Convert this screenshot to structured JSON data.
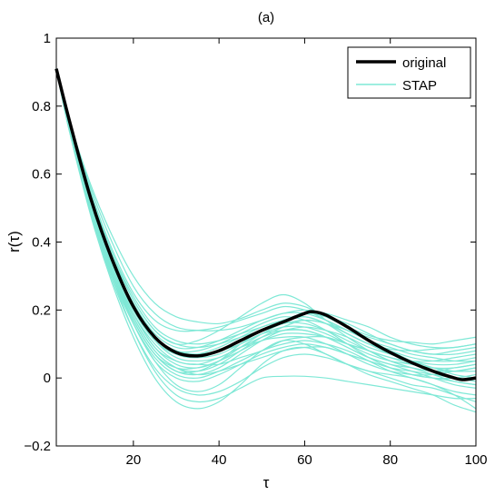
{
  "chart_data": {
    "type": "line",
    "title": "(a)",
    "xlabel": "τ",
    "ylabel": "r(τ)",
    "xlim": [
      2,
      100
    ],
    "ylim": [
      -0.2,
      1
    ],
    "xticks": [
      20,
      40,
      60,
      80,
      100
    ],
    "yticks": [
      -0.2,
      0,
      0.2,
      0.4,
      0.6,
      0.8,
      1
    ],
    "ytick_labels": [
      "−0.2",
      "0",
      "0.2",
      "0.4",
      "0.6",
      "0.8",
      "1"
    ],
    "grid": false,
    "legend_position": "top-right",
    "colors": {
      "original": "#000000",
      "STAP": "#7FE8D6"
    },
    "series": [
      {
        "name": "original",
        "x": [
          2,
          5,
          10,
          15,
          20,
          25,
          30,
          35,
          40,
          45,
          50,
          55,
          60,
          62,
          65,
          70,
          75,
          80,
          85,
          90,
          95,
          97,
          100
        ],
        "y": [
          0.91,
          0.76,
          0.53,
          0.35,
          0.21,
          0.12,
          0.075,
          0.065,
          0.08,
          0.11,
          0.14,
          0.165,
          0.19,
          0.195,
          0.185,
          0.15,
          0.11,
          0.075,
          0.045,
          0.02,
          0.0,
          -0.005,
          0.0
        ]
      },
      {
        "name": "STAP",
        "x": [
          2,
          5,
          10,
          15,
          20,
          25,
          30,
          35,
          40,
          45,
          50,
          55,
          60,
          65,
          70,
          75,
          80,
          85,
          90,
          95,
          100
        ],
        "curves": [
          [
            0.91,
            0.76,
            0.57,
            0.42,
            0.3,
            0.22,
            0.18,
            0.165,
            0.16,
            0.175,
            0.2,
            0.22,
            0.21,
            0.18,
            0.15,
            0.125,
            0.11,
            0.105,
            0.1,
            0.11,
            0.12
          ],
          [
            0.91,
            0.75,
            0.54,
            0.37,
            0.23,
            0.14,
            0.1,
            0.11,
            0.14,
            0.18,
            0.22,
            0.245,
            0.22,
            0.17,
            0.13,
            0.1,
            0.085,
            0.08,
            0.085,
            0.09,
            0.1
          ],
          [
            0.91,
            0.74,
            0.5,
            0.31,
            0.16,
            0.05,
            -0.02,
            -0.04,
            -0.02,
            0.03,
            0.08,
            0.11,
            0.1,
            0.07,
            0.04,
            0.02,
            0.01,
            0.0,
            -0.02,
            -0.05,
            -0.09
          ],
          [
            0.91,
            0.73,
            0.48,
            0.28,
            0.12,
            0.0,
            -0.07,
            -0.09,
            -0.07,
            -0.02,
            0.04,
            0.08,
            0.09,
            0.07,
            0.04,
            0.01,
            -0.01,
            -0.03,
            -0.05,
            -0.08,
            -0.1
          ],
          [
            0.91,
            0.74,
            0.49,
            0.3,
            0.14,
            0.02,
            -0.05,
            -0.07,
            -0.06,
            -0.03,
            0.0,
            0.005,
            0.005,
            0.0,
            -0.01,
            -0.02,
            -0.03,
            -0.04,
            -0.05,
            -0.06,
            -0.06
          ],
          [
            0.91,
            0.76,
            0.55,
            0.38,
            0.25,
            0.17,
            0.14,
            0.14,
            0.15,
            0.17,
            0.19,
            0.21,
            0.2,
            0.17,
            0.14,
            0.12,
            0.1,
            0.08,
            0.07,
            0.07,
            0.08
          ],
          [
            0.91,
            0.75,
            0.53,
            0.35,
            0.21,
            0.12,
            0.08,
            0.07,
            0.08,
            0.1,
            0.13,
            0.15,
            0.15,
            0.13,
            0.1,
            0.07,
            0.05,
            0.04,
            0.03,
            0.03,
            0.04
          ],
          [
            0.91,
            0.74,
            0.51,
            0.33,
            0.19,
            0.09,
            0.04,
            0.03,
            0.05,
            0.09,
            0.13,
            0.16,
            0.16,
            0.14,
            0.11,
            0.08,
            0.06,
            0.04,
            0.03,
            0.02,
            0.02
          ],
          [
            0.91,
            0.75,
            0.52,
            0.34,
            0.2,
            0.11,
            0.07,
            0.07,
            0.09,
            0.12,
            0.15,
            0.17,
            0.18,
            0.16,
            0.13,
            0.1,
            0.07,
            0.05,
            0.03,
            0.02,
            0.03
          ],
          [
            0.91,
            0.74,
            0.5,
            0.32,
            0.17,
            0.07,
            0.02,
            0.01,
            0.03,
            0.07,
            0.11,
            0.14,
            0.14,
            0.12,
            0.09,
            0.06,
            0.04,
            0.02,
            0.0,
            -0.02,
            -0.03
          ],
          [
            0.91,
            0.73,
            0.49,
            0.3,
            0.16,
            0.06,
            0.01,
            0.0,
            0.02,
            0.05,
            0.08,
            0.1,
            0.11,
            0.1,
            0.08,
            0.05,
            0.02,
            0.0,
            -0.02,
            -0.04,
            -0.05
          ],
          [
            0.91,
            0.75,
            0.53,
            0.36,
            0.23,
            0.14,
            0.1,
            0.09,
            0.1,
            0.12,
            0.14,
            0.16,
            0.17,
            0.16,
            0.13,
            0.1,
            0.08,
            0.06,
            0.05,
            0.05,
            0.06
          ],
          [
            0.91,
            0.74,
            0.51,
            0.33,
            0.18,
            0.08,
            0.03,
            0.02,
            0.04,
            0.08,
            0.12,
            0.15,
            0.17,
            0.16,
            0.14,
            0.11,
            0.08,
            0.05,
            0.03,
            0.01,
            0.0
          ],
          [
            0.91,
            0.73,
            0.5,
            0.31,
            0.17,
            0.07,
            0.02,
            0.02,
            0.05,
            0.1,
            0.14,
            0.17,
            0.18,
            0.16,
            0.12,
            0.08,
            0.05,
            0.03,
            0.01,
            -0.01,
            -0.02
          ],
          [
            0.91,
            0.74,
            0.52,
            0.34,
            0.2,
            0.11,
            0.06,
            0.05,
            0.06,
            0.09,
            0.11,
            0.13,
            0.13,
            0.12,
            0.1,
            0.08,
            0.06,
            0.05,
            0.05,
            0.06,
            0.07
          ],
          [
            0.91,
            0.76,
            0.54,
            0.37,
            0.24,
            0.15,
            0.11,
            0.1,
            0.11,
            0.13,
            0.15,
            0.17,
            0.19,
            0.18,
            0.16,
            0.13,
            0.1,
            0.08,
            0.07,
            0.08,
            0.09
          ],
          [
            0.91,
            0.74,
            0.51,
            0.32,
            0.18,
            0.08,
            0.03,
            0.01,
            0.02,
            0.04,
            0.06,
            0.08,
            0.09,
            0.09,
            0.07,
            0.05,
            0.03,
            0.01,
            0.0,
            0.0,
            0.01
          ],
          [
            0.91,
            0.75,
            0.52,
            0.34,
            0.21,
            0.12,
            0.07,
            0.06,
            0.07,
            0.1,
            0.13,
            0.14,
            0.14,
            0.12,
            0.09,
            0.06,
            0.04,
            0.03,
            0.02,
            0.03,
            0.04
          ],
          [
            0.91,
            0.73,
            0.5,
            0.31,
            0.16,
            0.05,
            0.0,
            -0.01,
            0.01,
            0.04,
            0.07,
            0.09,
            0.1,
            0.09,
            0.07,
            0.05,
            0.03,
            0.02,
            0.01,
            0.0,
            -0.01
          ],
          [
            0.91,
            0.75,
            0.53,
            0.35,
            0.22,
            0.13,
            0.09,
            0.09,
            0.11,
            0.14,
            0.17,
            0.19,
            0.19,
            0.17,
            0.14,
            0.11,
            0.09,
            0.07,
            0.06,
            0.05,
            0.05
          ],
          [
            0.91,
            0.74,
            0.52,
            0.33,
            0.19,
            0.09,
            0.05,
            0.04,
            0.06,
            0.09,
            0.12,
            0.14,
            0.15,
            0.14,
            0.12,
            0.09,
            0.07,
            0.05,
            0.04,
            0.04,
            0.05
          ],
          [
            0.91,
            0.73,
            0.49,
            0.29,
            0.14,
            0.03,
            -0.03,
            -0.05,
            -0.04,
            -0.01,
            0.03,
            0.06,
            0.07,
            0.06,
            0.04,
            0.02,
            0.0,
            -0.02,
            -0.03,
            -0.05,
            -0.07
          ],
          [
            0.91,
            0.76,
            0.56,
            0.4,
            0.27,
            0.19,
            0.15,
            0.14,
            0.14,
            0.15,
            0.17,
            0.19,
            0.2,
            0.19,
            0.17,
            0.15,
            0.12,
            0.1,
            0.09,
            0.09,
            0.1
          ],
          [
            0.91,
            0.74,
            0.51,
            0.33,
            0.19,
            0.1,
            0.05,
            0.04,
            0.04,
            0.06,
            0.08,
            0.11,
            0.12,
            0.12,
            0.1,
            0.08,
            0.05,
            0.03,
            0.02,
            0.02,
            0.03
          ],
          [
            0.91,
            0.75,
            0.53,
            0.35,
            0.21,
            0.12,
            0.08,
            0.08,
            0.1,
            0.13,
            0.16,
            0.18,
            0.17,
            0.14,
            0.1,
            0.06,
            0.03,
            0.01,
            0.0,
            -0.01,
            -0.02
          ],
          [
            0.91,
            0.74,
            0.5,
            0.31,
            0.17,
            0.07,
            0.03,
            0.03,
            0.05,
            0.08,
            0.11,
            0.12,
            0.12,
            0.1,
            0.07,
            0.04,
            0.02,
            0.01,
            0.01,
            0.02,
            0.03
          ]
        ]
      }
    ]
  }
}
